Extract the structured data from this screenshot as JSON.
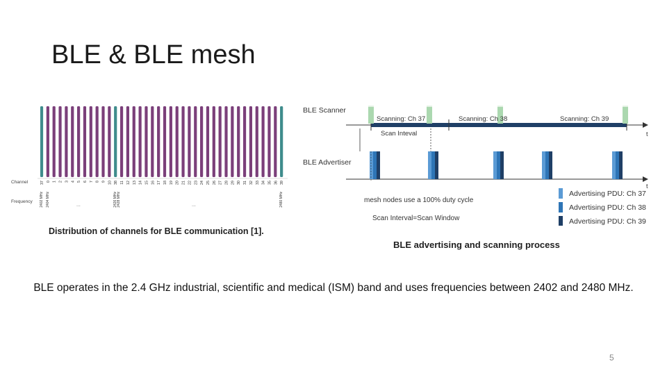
{
  "slide": {
    "title": "BLE & BLE mesh",
    "body_text": "BLE operates in the 2.4 GHz industrial, scientific and medical (ISM) band and uses frequencies between 2402 and 2480  MHz.",
    "page_number": "5"
  },
  "channel_figure": {
    "caption": "Distribution of channels for BLE communication [1].",
    "row_label_channel": "Channel",
    "row_label_frequency": "Frequency",
    "channel_labels": [
      "37",
      "0",
      "1",
      "2",
      "3",
      "4",
      "5",
      "6",
      "7",
      "8",
      "9",
      "10",
      "38",
      "11",
      "12",
      "13",
      "14",
      "15",
      "16",
      "17",
      "18",
      "19",
      "20",
      "21",
      "22",
      "23",
      "24",
      "25",
      "26",
      "27",
      "28",
      "29",
      "30",
      "31",
      "32",
      "33",
      "34",
      "35",
      "36",
      "39"
    ],
    "advertising_channels": [
      "37",
      "38",
      "39"
    ],
    "frequency_labels": [
      {
        "channel_index": 0,
        "lines": [
          "2402 MHz"
        ]
      },
      {
        "channel_index": 1,
        "lines": [
          "2404 MHz"
        ]
      },
      {
        "channel_index": 12,
        "lines": [
          "2426 MHz",
          "2428 MHz"
        ]
      },
      {
        "channel_index": 39,
        "lines": [
          "2480 MHz"
        ]
      }
    ],
    "ellipsis": [
      "...",
      "..."
    ],
    "colors": {
      "data_channel": "#7b3f7a",
      "advertising_channel": "#3f8c8c"
    }
  },
  "sequence_figure": {
    "caption": "BLE advertising and scanning process",
    "scanner_label": "BLE Scanner",
    "advertiser_label": "BLE Advertiser",
    "scan_phases": [
      "Scanning: Ch 37",
      "Scanning: Ch 38",
      "Scanning: Ch 39"
    ],
    "scan_interval_label": "Scan Inteval",
    "time_axis_label": "t",
    "duty_cycle_note": "mesh nodes use a 100% duty cycle",
    "scan_window_note": "Scan Interval=Scan Window",
    "legend": [
      {
        "label": "Advertising PDU: Ch 37",
        "color": "#5b9bd5"
      },
      {
        "label": "Advertising PDU: Ch 38",
        "color": "#2e75b6"
      },
      {
        "label": "Advertising PDU: Ch 39",
        "color": "#1f3f66"
      }
    ],
    "colors": {
      "scan_bar": "#1f3f66",
      "scanner_green": "#55b060"
    }
  }
}
